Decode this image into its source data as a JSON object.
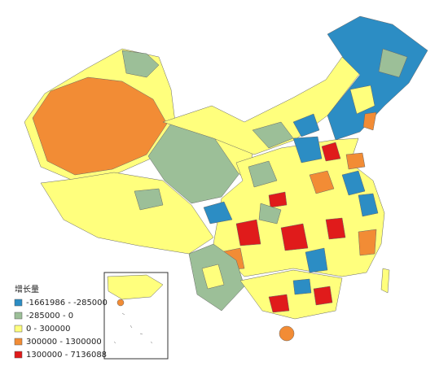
{
  "legend": {
    "title": "增长量",
    "items": [
      {
        "label": "-1661986 - -285000",
        "color": "#2c8dc4"
      },
      {
        "label": "-285000 - 0",
        "color": "#9cbf98"
      },
      {
        "label": "0 - 300000",
        "color": "#ffff7d"
      },
      {
        "label": "300000 - 1300000",
        "color": "#f28c35"
      },
      {
        "label": "1300000 - 7136088",
        "color": "#e01b1b"
      }
    ]
  }
}
